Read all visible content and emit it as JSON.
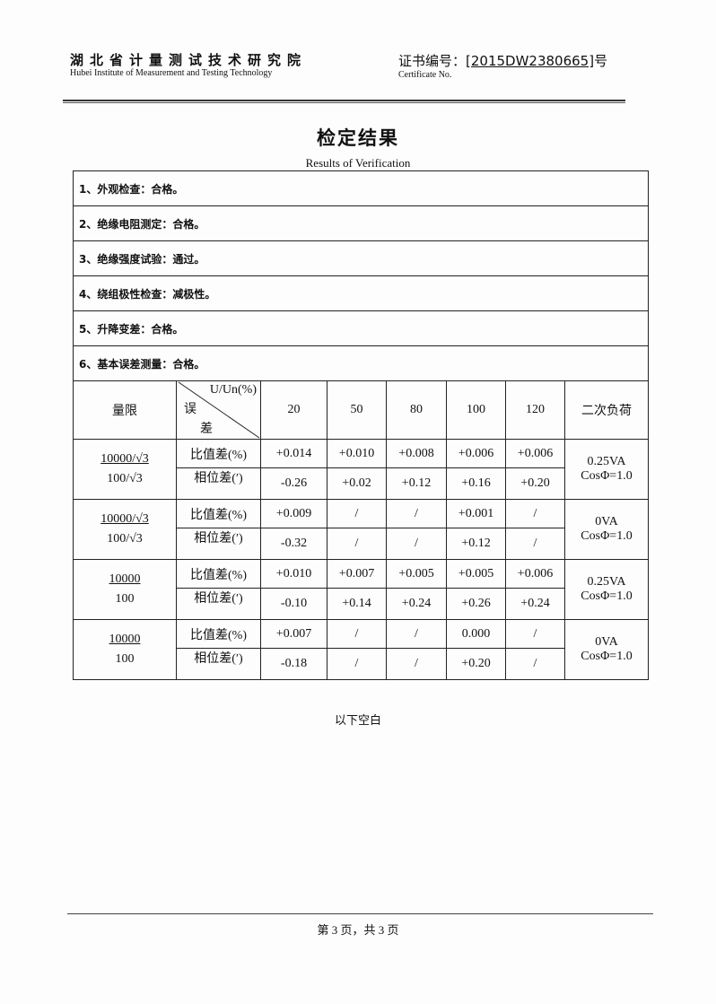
{
  "header": {
    "institute_cn": "湖北省计量测试技术研究院",
    "institute_en": "Hubei Institute of Measurement and Testing Technology",
    "cert_label_cn": "证书编号：",
    "cert_number": "[2015DW2380665]",
    "cert_suffix": "号",
    "cert_label_en": "Certificate No."
  },
  "title": "检定结果",
  "subtitle": "Results of Verification",
  "items": [
    "1、外观检查：合格。",
    "2、绝缘电阻测定：合格。",
    "3、绝缘强度试验：通过。",
    "4、绕组极性检查：减极性。",
    "5、升降变差：合格。",
    "6、基本误差测量：合格。"
  ],
  "table": {
    "col_range": "量限",
    "diag_top": "U/Un(%)",
    "diag_bottom1": "误",
    "diag_bottom2": "差",
    "percents": [
      "20",
      "50",
      "80",
      "100",
      "120"
    ],
    "col_burden": "二次负荷",
    "ratio_label": "比值差(%)",
    "phase_label": "相位差(′)",
    "groups": [
      {
        "primary": "10000/√3",
        "secondary": "100/√3",
        "ratio": [
          "+0.014",
          "+0.010",
          "+0.008",
          "+0.006",
          "+0.006"
        ],
        "phase": [
          "-0.26",
          "+0.02",
          "+0.12",
          "+0.16",
          "+0.20"
        ],
        "burden": "0.25VA",
        "pf": "CosΦ=1.0"
      },
      {
        "primary": "10000/√3",
        "secondary": "100/√3",
        "ratio": [
          "+0.009",
          "/",
          "/",
          "+0.001",
          "/"
        ],
        "phase": [
          "-0.32",
          "/",
          "/",
          "+0.12",
          "/"
        ],
        "burden": "0VA",
        "pf": "CosΦ=1.0"
      },
      {
        "primary": "10000",
        "secondary": "100",
        "ratio": [
          "+0.010",
          "+0.007",
          "+0.005",
          "+0.005",
          "+0.006"
        ],
        "phase": [
          "-0.10",
          "+0.14",
          "+0.24",
          "+0.26",
          "+0.24"
        ],
        "burden": "0.25VA",
        "pf": "CosΦ=1.0"
      },
      {
        "primary": "10000",
        "secondary": "100",
        "ratio": [
          "+0.007",
          "/",
          "/",
          "0.000",
          "/"
        ],
        "phase": [
          "-0.18",
          "/",
          "/",
          "+0.20",
          "/"
        ],
        "burden": "0VA",
        "pf": "CosΦ=1.0"
      }
    ]
  },
  "blank_note": "以下空白",
  "footer": "第 3 页，共 3 页"
}
